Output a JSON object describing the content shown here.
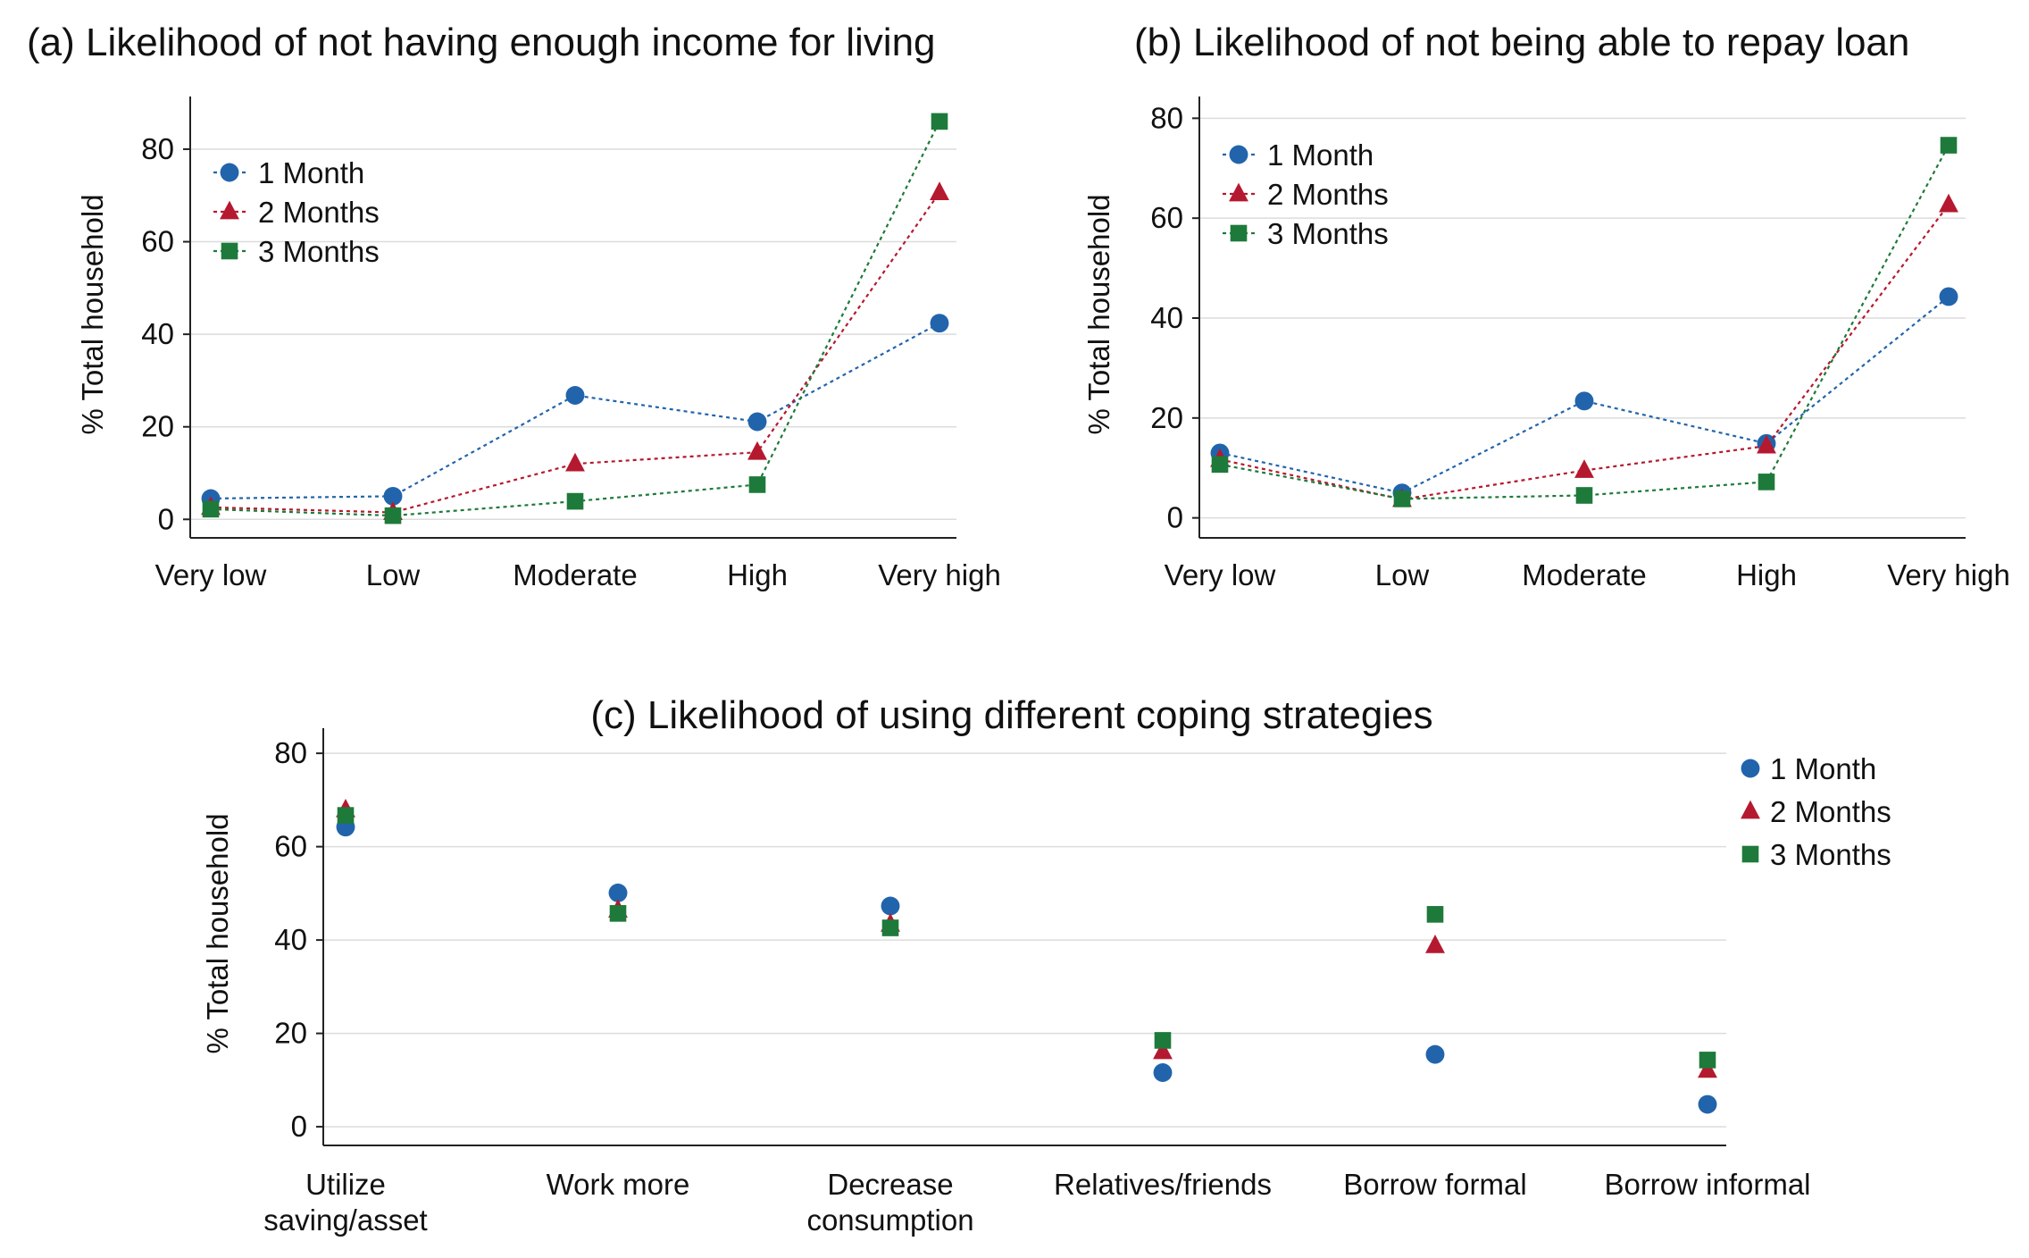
{
  "colors": {
    "1 Month": "#2264ac",
    "2 Months": "#b5192f",
    "3 Months": "#1e7a3a"
  },
  "chart_data": [
    {
      "id": "a",
      "type": "line",
      "title": "(a) Likelihood of not having enough income for living",
      "xlabel": "",
      "ylabel": "% Total household",
      "categories": [
        "Very low",
        "Low",
        "Moderate",
        "High",
        "Very high"
      ],
      "ylim": [
        -4,
        91
      ],
      "yticks": [
        0,
        20,
        40,
        60,
        80
      ],
      "grid": true,
      "legend": "top-left",
      "series": [
        {
          "name": "1 Month",
          "marker": "circle",
          "values": [
            4.5,
            5.0,
            26.8,
            21.1,
            42.4
          ]
        },
        {
          "name": "2 Months",
          "marker": "triangle",
          "values": [
            2.6,
            1.5,
            12.0,
            14.5,
            70.6
          ]
        },
        {
          "name": "3 Months",
          "marker": "square",
          "values": [
            2.2,
            0.8,
            3.9,
            7.5,
            86.0
          ]
        }
      ]
    },
    {
      "id": "b",
      "type": "line",
      "title": "(b) Likelihood of not being able to repay loan",
      "xlabel": "",
      "ylabel": "% Total household",
      "categories": [
        "Very low",
        "Low",
        "Moderate",
        "High",
        "Very high"
      ],
      "ylim": [
        -4,
        84
      ],
      "yticks": [
        0,
        20,
        40,
        60,
        80
      ],
      "grid": true,
      "legend": "top-left",
      "series": [
        {
          "name": "1 Month",
          "marker": "circle",
          "values": [
            13.0,
            5.0,
            23.4,
            14.9,
            44.3
          ]
        },
        {
          "name": "2 Months",
          "marker": "triangle",
          "values": [
            11.7,
            3.7,
            9.5,
            14.4,
            62.7
          ]
        },
        {
          "name": "3 Months",
          "marker": "square",
          "values": [
            10.7,
            3.8,
            4.5,
            7.2,
            74.6
          ]
        }
      ]
    },
    {
      "id": "c",
      "type": "scatter",
      "title": "(c) Likelihood of using different coping strategies",
      "xlabel": "",
      "ylabel": "% Total household",
      "categories": [
        "Utilize saving/asset",
        "Work more",
        "Decrease consumption",
        "Relatives/friends",
        "Borrow formal",
        "Borrow informal"
      ],
      "category_lines": [
        [
          "Utilize",
          "saving/asset"
        ],
        [
          "Work more"
        ],
        [
          "Decrease",
          "consumption"
        ],
        [
          "Relatives/friends"
        ],
        [
          "Borrow formal"
        ],
        [
          "Borrow informal"
        ]
      ],
      "ylim": [
        -4,
        85
      ],
      "yticks": [
        0,
        20,
        40,
        60,
        80
      ],
      "grid": true,
      "legend": "top-right",
      "series": [
        {
          "name": "1 Month",
          "marker": "circle",
          "values": [
            64.2,
            50.1,
            47.3,
            11.6,
            15.5,
            4.8
          ]
        },
        {
          "name": "2 Months",
          "marker": "triangle",
          "values": [
            67.9,
            46.4,
            43.4,
            16.1,
            38.8,
            12.1
          ]
        },
        {
          "name": "3 Months",
          "marker": "square",
          "values": [
            66.7,
            45.7,
            42.6,
            18.5,
            45.5,
            14.3
          ]
        }
      ]
    }
  ]
}
